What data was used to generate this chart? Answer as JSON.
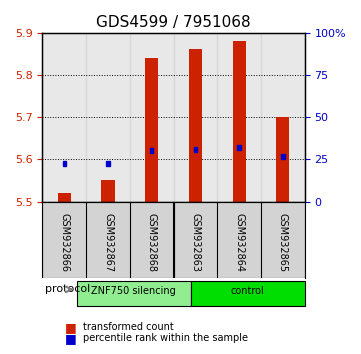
{
  "title": "GDS4599 / 7951068",
  "samples": [
    "GSM932866",
    "GSM932867",
    "GSM932868",
    "GSM932863",
    "GSM932864",
    "GSM932865"
  ],
  "groups": [
    "ZNF750 silencing",
    "ZNF750 silencing",
    "ZNF750 silencing",
    "control",
    "control",
    "control"
  ],
  "group_colors": [
    "#90EE90",
    "#90EE90",
    "#90EE90",
    "#00CC00",
    "#00CC00",
    "#00CC00"
  ],
  "bar_bottom": 5.5,
  "bar_tops": [
    5.52,
    5.55,
    5.84,
    5.86,
    5.88,
    5.7
  ],
  "percentile_values": [
    5.585,
    5.585,
    5.615,
    5.618,
    5.623,
    5.602
  ],
  "ylim": [
    5.5,
    5.9
  ],
  "yticks_left": [
    5.5,
    5.6,
    5.7,
    5.8,
    5.9
  ],
  "yticks_right": [
    0,
    25,
    50,
    75,
    100
  ],
  "bar_color": "#CC2200",
  "percentile_color": "#0000CC",
  "background_color": "#FFFFFF",
  "plot_bg_color": "#DDDDDD",
  "legend_square_size": 8,
  "group_label_1": "ZNF750 silencing",
  "group_label_2": "control",
  "protocol_label": "protocol"
}
